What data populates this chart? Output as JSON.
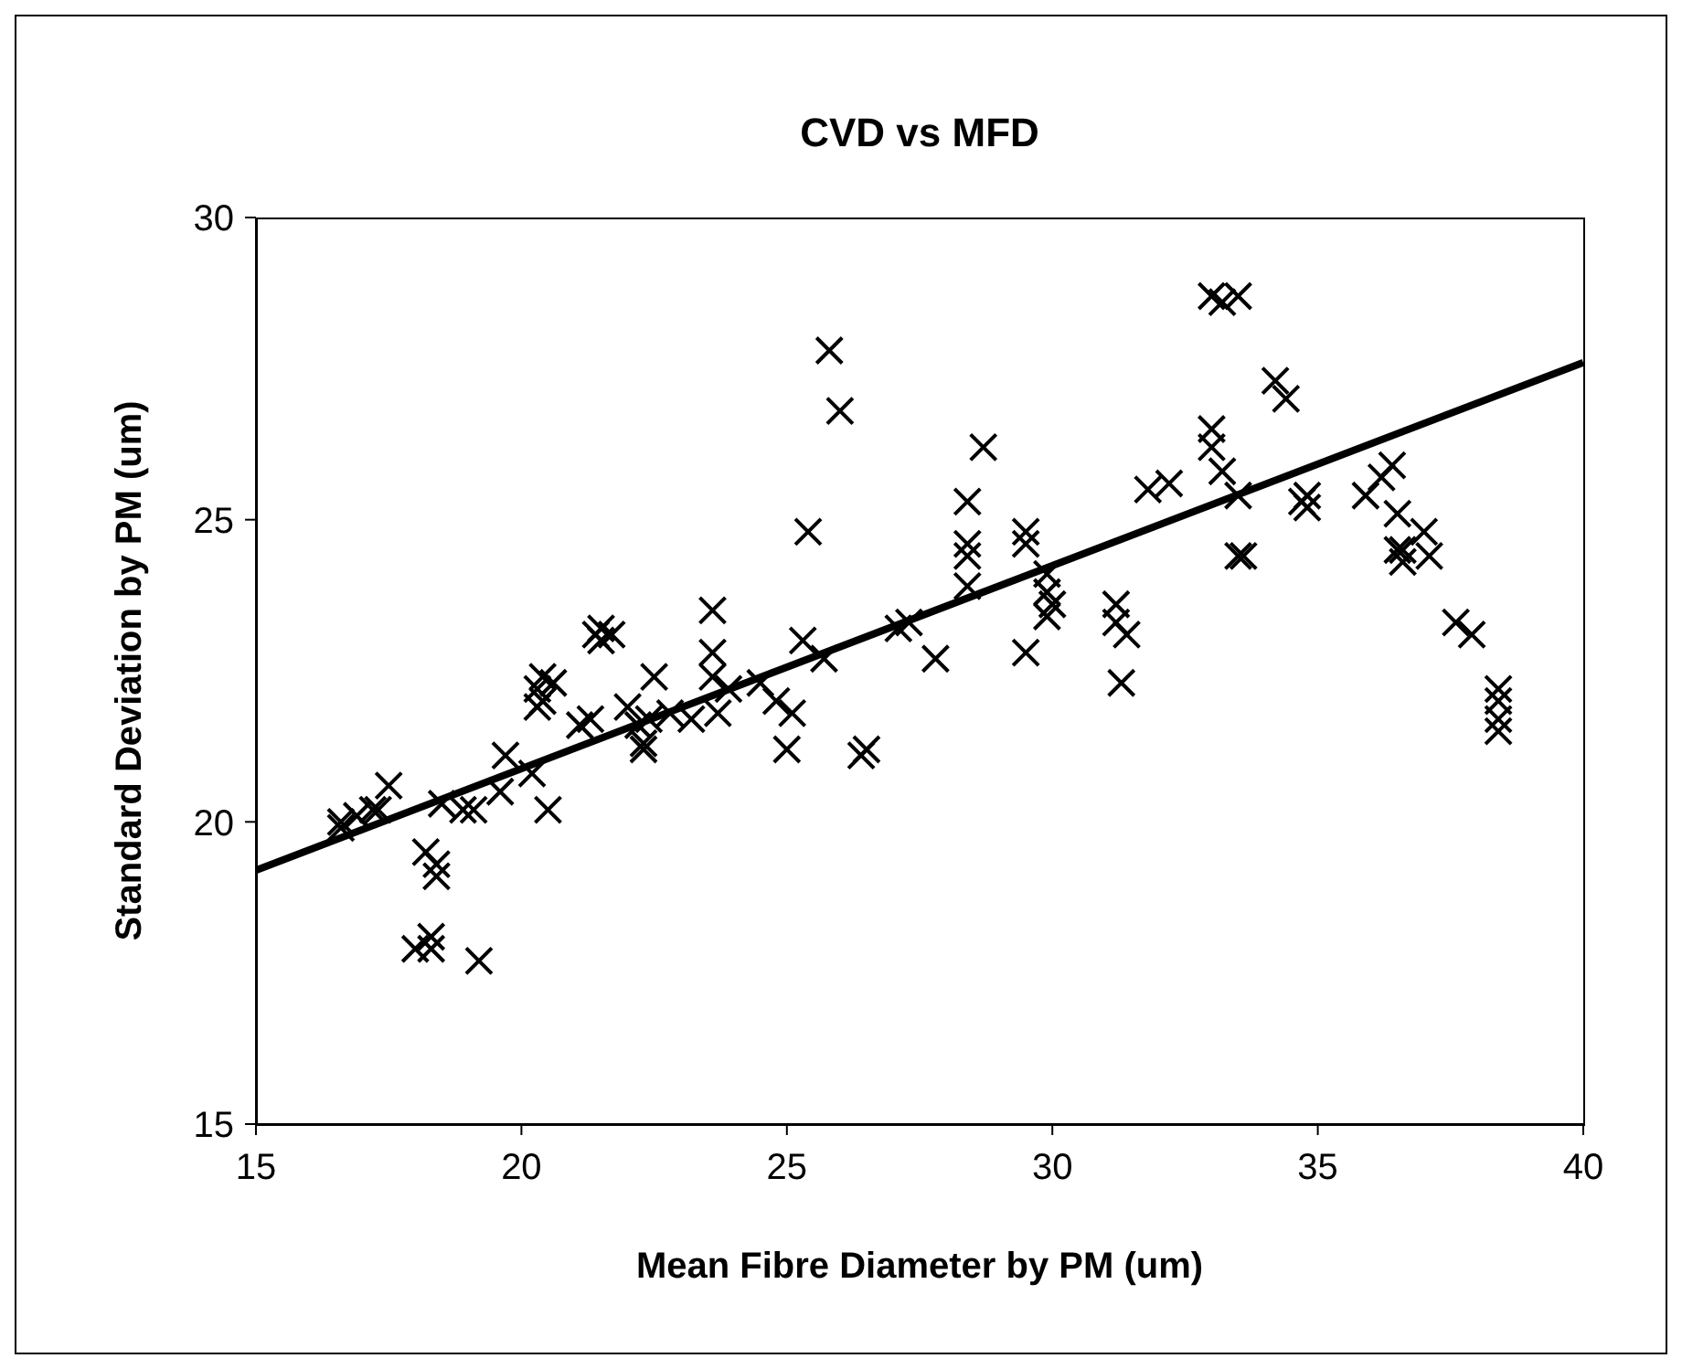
{
  "chart_data": {
    "type": "scatter",
    "title": "CVD vs MFD",
    "xlabel": "Mean Fibre Diameter by PM (um)",
    "ylabel": "Standard Deviation by PM (um)",
    "xlim": [
      15,
      40
    ],
    "xticks": [
      15,
      20,
      25,
      30,
      35,
      40
    ],
    "ylim": [
      15,
      30
    ],
    "yticks": [
      15,
      20,
      25,
      30
    ],
    "grid": false,
    "legend": false,
    "marker": "cross",
    "series": [
      {
        "color": "#000000",
        "x": [
          16.6,
          16.6,
          16.9,
          17.2,
          17.3,
          17.5,
          18.0,
          18.3,
          18.3,
          18.2,
          18.4,
          18.4,
          18.5,
          18.9,
          19.1,
          19.2,
          19.6,
          19.7,
          20.2,
          20.3,
          20.3,
          20.4,
          20.4,
          20.5,
          20.6,
          21.1,
          21.3,
          21.4,
          21.5,
          21.5,
          21.7,
          22.0,
          22.2,
          22.3,
          22.3,
          22.5,
          22.4,
          22.8,
          23.2,
          23.6,
          23.6,
          23.6,
          23.7,
          23.9,
          24.5,
          24.8,
          25.0,
          25.1,
          25.3,
          25.4,
          25.7,
          25.8,
          26.0,
          26.4,
          26.5,
          27.1,
          27.3,
          27.8,
          28.4,
          28.4,
          28.4,
          28.4,
          28.7,
          29.5,
          29.5,
          29.5,
          29.9,
          29.9,
          29.9,
          30.0,
          31.2,
          31.2,
          31.3,
          31.4,
          31.8,
          32.2,
          33.0,
          33.0,
          33.0,
          33.2,
          33.2,
          33.5,
          33.5,
          33.5,
          33.6,
          34.2,
          34.4,
          34.7,
          34.8,
          34.8,
          35.9,
          36.2,
          36.4,
          36.5,
          36.5,
          36.6,
          36.6,
          37.0,
          37.1,
          37.6,
          37.9,
          38.4,
          38.4,
          38.4,
          38.4
        ],
        "values": [
          20.0,
          19.9,
          20.1,
          20.2,
          20.2,
          20.6,
          17.9,
          18.1,
          17.9,
          19.5,
          19.1,
          19.3,
          20.3,
          20.2,
          20.2,
          17.7,
          20.5,
          21.1,
          20.8,
          22.2,
          21.9,
          22.4,
          22.0,
          20.2,
          22.3,
          21.6,
          21.7,
          23.1,
          23.0,
          23.2,
          23.1,
          21.9,
          21.6,
          21.3,
          21.2,
          22.4,
          21.7,
          21.8,
          21.7,
          23.5,
          22.8,
          22.4,
          21.8,
          22.2,
          22.3,
          22.0,
          21.2,
          21.8,
          23.0,
          24.8,
          22.7,
          27.8,
          26.8,
          21.1,
          21.2,
          23.2,
          23.3,
          22.7,
          25.3,
          24.6,
          24.4,
          23.9,
          26.2,
          24.8,
          24.6,
          22.8,
          23.8,
          23.4,
          24.1,
          23.6,
          23.6,
          23.3,
          22.3,
          23.1,
          25.5,
          25.6,
          28.7,
          26.5,
          26.2,
          28.6,
          25.8,
          28.7,
          24.4,
          25.4,
          24.4,
          27.3,
          27.0,
          25.3,
          25.2,
          25.4,
          25.4,
          25.7,
          25.9,
          25.1,
          24.5,
          24.3,
          24.5,
          24.8,
          24.4,
          23.3,
          23.1,
          22.2,
          22.0,
          21.7,
          21.5
        ]
      },
      {
        "type": "line",
        "color": "#000000",
        "marker": "none",
        "x": [
          15,
          40
        ],
        "values": [
          19.2,
          27.6
        ]
      }
    ]
  }
}
